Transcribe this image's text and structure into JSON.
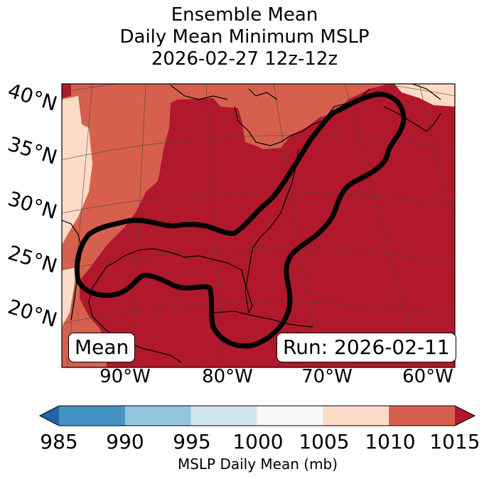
{
  "title": {
    "line1": "Ensemble Mean",
    "line2": "Daily Mean Minimum MSLP",
    "line3": "2026-02-27 12z-12z"
  },
  "map": {
    "lat_labels": [
      "40°N",
      "35°N",
      "30°N",
      "25°N",
      "20°N"
    ],
    "lon_labels": [
      "90°W",
      "80°W",
      "70°W",
      "60°W"
    ],
    "mean_label": "Mean",
    "run_label": "Run: 2026-02-11",
    "contour_color": "#000000"
  },
  "colorbar": {
    "ticks": [
      "985",
      "990",
      "995",
      "1000",
      "1005",
      "1010",
      "1015"
    ],
    "label": "MSLP Daily Mean (mb)",
    "colors": [
      "#2166ac",
      "#4393c3",
      "#92c5de",
      "#d1e5f0",
      "#f7f7f7",
      "#fddbc7",
      "#d6604d",
      "#b2182b"
    ]
  }
}
